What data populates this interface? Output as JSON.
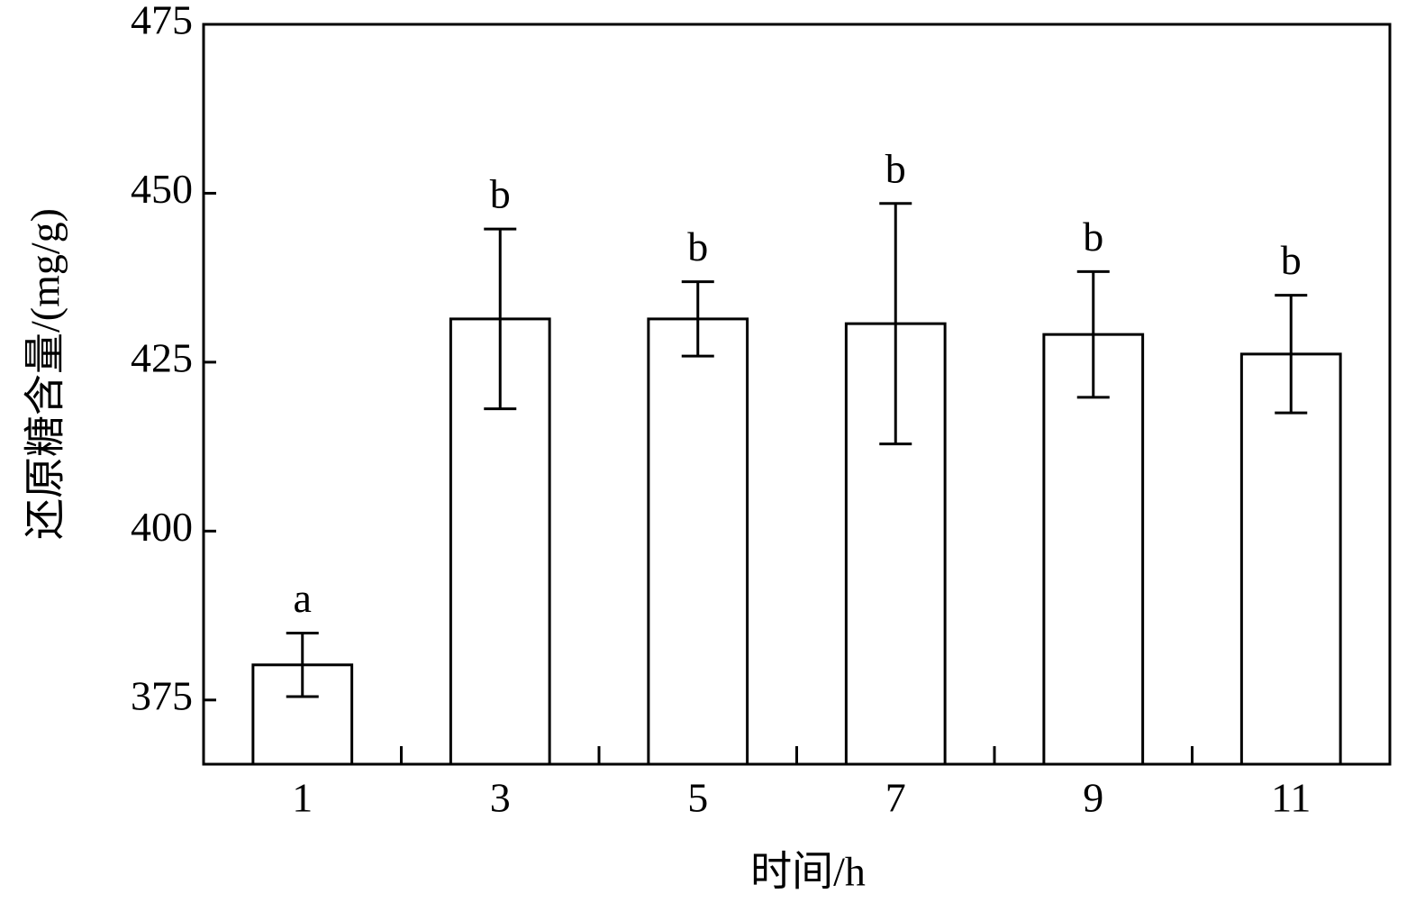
{
  "chart_data": {
    "type": "bar",
    "x_label": "时间/h",
    "y_label": "还原糖含量/(mg/g)",
    "categories": [
      "1",
      "3",
      "5",
      "7",
      "9",
      "11"
    ],
    "values": [
      380.2,
      431.4,
      431.4,
      430.7,
      429.1,
      426.2
    ],
    "errors": [
      4.7,
      13.3,
      5.5,
      17.8,
      9.3,
      8.7
    ],
    "letters": [
      "a",
      "b",
      "b",
      "b",
      "b",
      "b"
    ],
    "color": "#ffffff",
    "ylim": [
      365.5,
      475
    ],
    "yticks": [
      375,
      400,
      425,
      450,
      475
    ],
    "grid": false
  }
}
